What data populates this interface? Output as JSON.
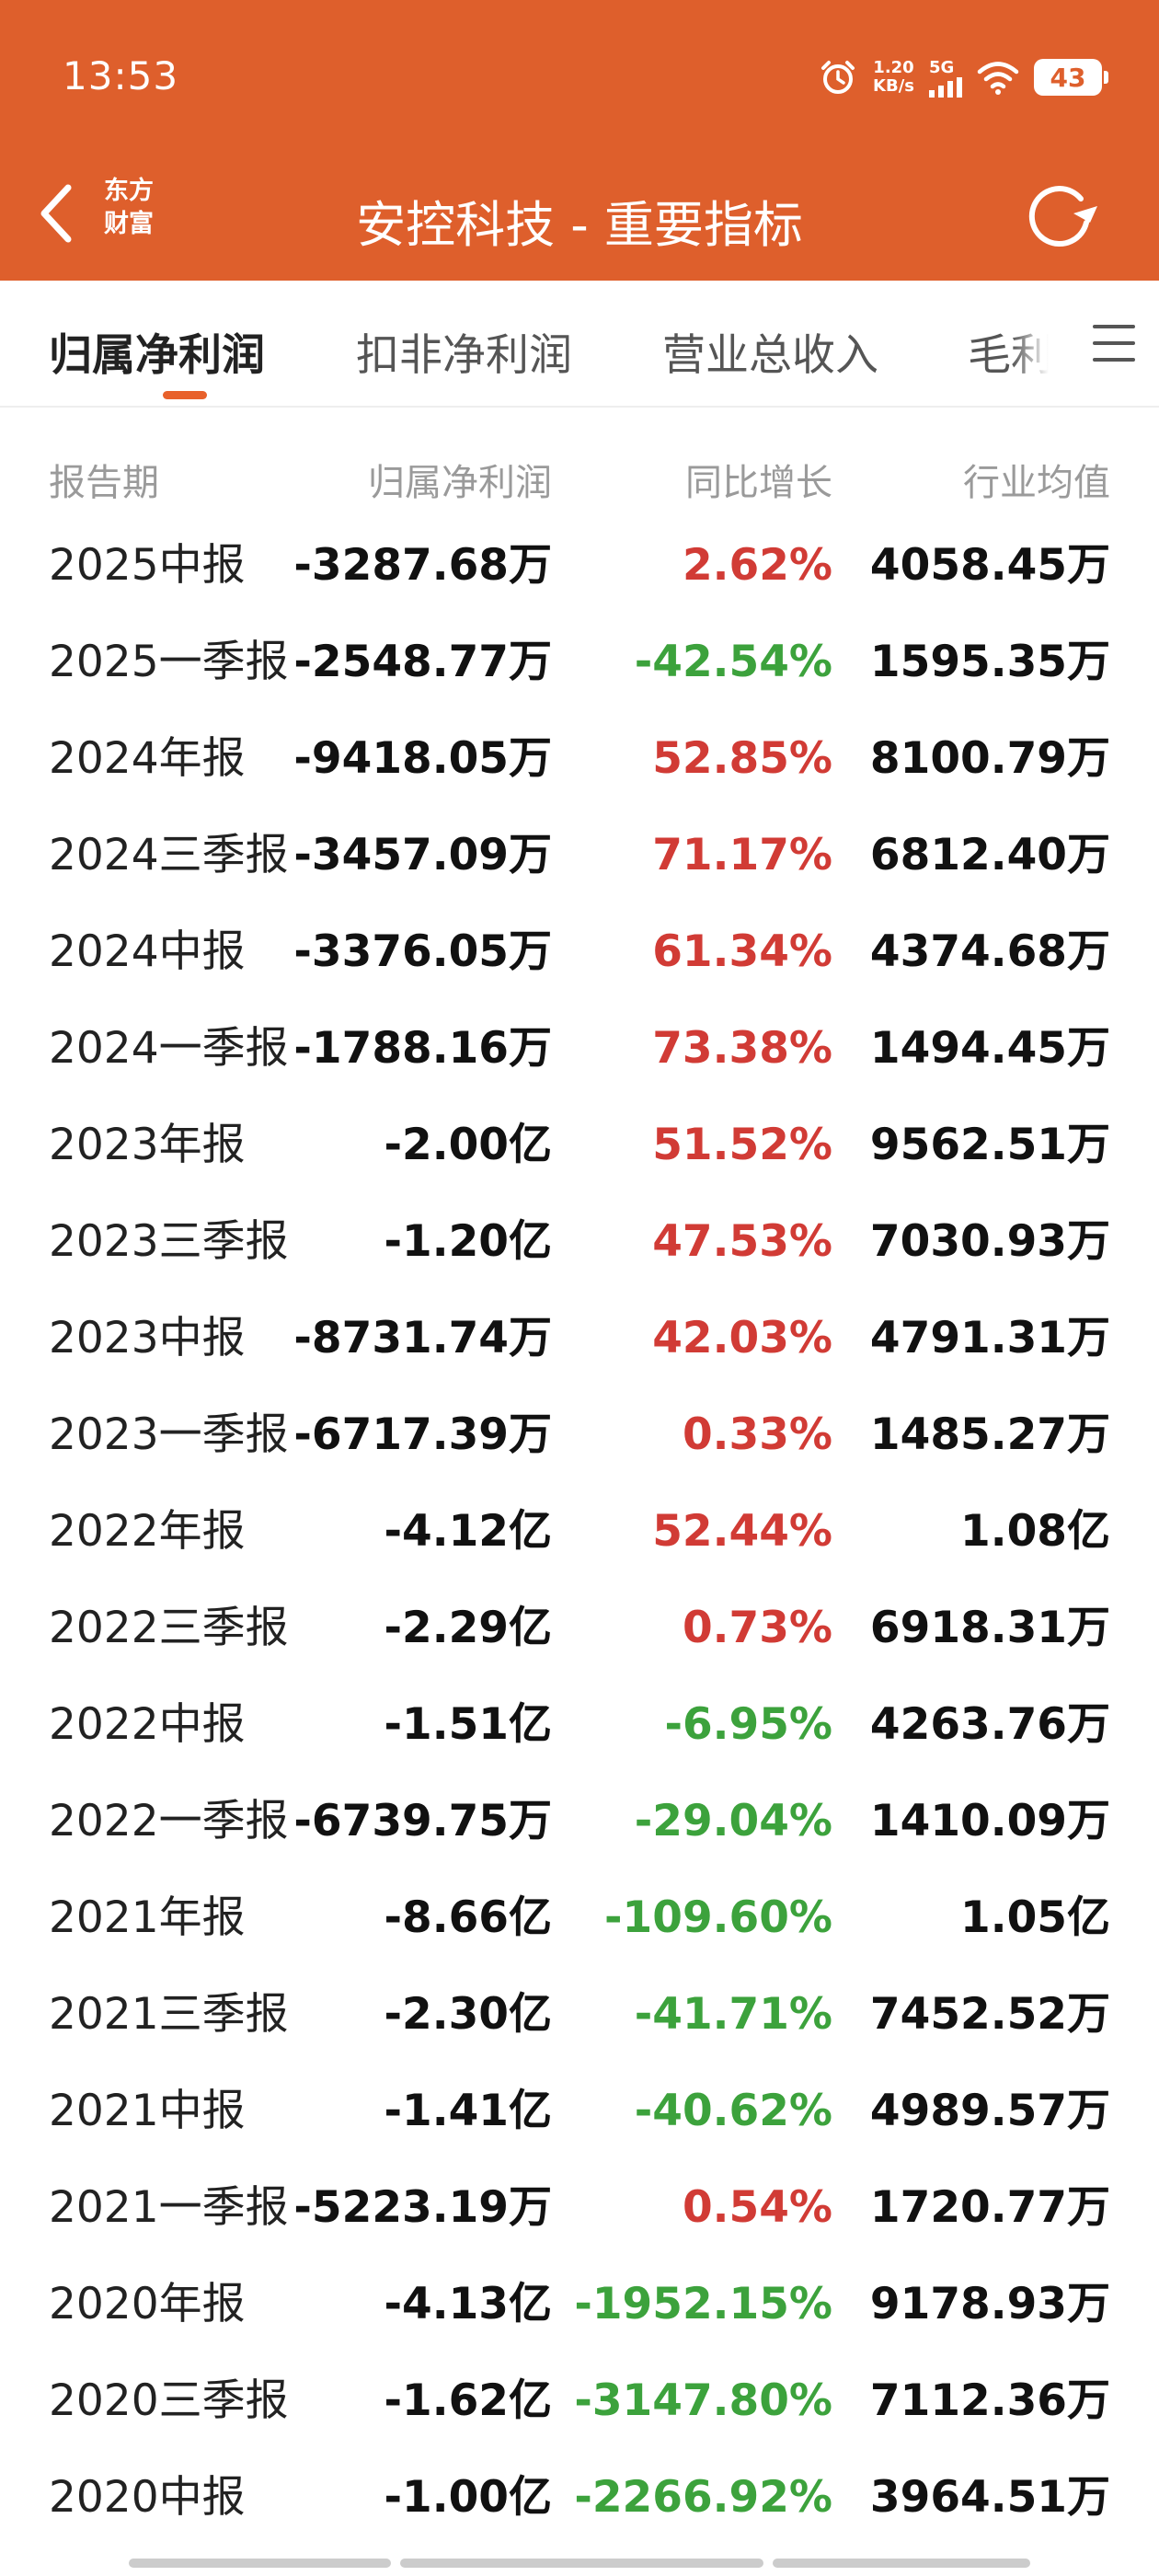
{
  "status_bar": {
    "time": "13:53",
    "net_speed_value": "1.20",
    "net_speed_unit": "KB/s",
    "signal_label": "5G",
    "battery": "43"
  },
  "header": {
    "logo_line1": "东方",
    "logo_line2": "财富",
    "title": "安控科技 - 重要指标",
    "accent_color": "#DE5F2C"
  },
  "tabs": [
    {
      "label": "归属净利润",
      "active": true
    },
    {
      "label": "扣非净利润",
      "active": false
    },
    {
      "label": "营业总收入",
      "active": false
    },
    {
      "label": "毛利",
      "active": false
    }
  ],
  "table": {
    "columns": [
      "报告期",
      "归属净利润",
      "同比增长",
      "行业均值"
    ],
    "rows": [
      {
        "period": "2025中报",
        "profit": "-3287.68万",
        "yoy": "2.62%",
        "trend": "up",
        "industry_avg": "4058.45万"
      },
      {
        "period": "2025一季报",
        "profit": "-2548.77万",
        "yoy": "-42.54%",
        "trend": "down",
        "industry_avg": "1595.35万"
      },
      {
        "period": "2024年报",
        "profit": "-9418.05万",
        "yoy": "52.85%",
        "trend": "up",
        "industry_avg": "8100.79万"
      },
      {
        "period": "2024三季报",
        "profit": "-3457.09万",
        "yoy": "71.17%",
        "trend": "up",
        "industry_avg": "6812.40万"
      },
      {
        "period": "2024中报",
        "profit": "-3376.05万",
        "yoy": "61.34%",
        "trend": "up",
        "industry_avg": "4374.68万"
      },
      {
        "period": "2024一季报",
        "profit": "-1788.16万",
        "yoy": "73.38%",
        "trend": "up",
        "industry_avg": "1494.45万"
      },
      {
        "period": "2023年报",
        "profit": "-2.00亿",
        "yoy": "51.52%",
        "trend": "up",
        "industry_avg": "9562.51万"
      },
      {
        "period": "2023三季报",
        "profit": "-1.20亿",
        "yoy": "47.53%",
        "trend": "up",
        "industry_avg": "7030.93万"
      },
      {
        "period": "2023中报",
        "profit": "-8731.74万",
        "yoy": "42.03%",
        "trend": "up",
        "industry_avg": "4791.31万"
      },
      {
        "period": "2023一季报",
        "profit": "-6717.39万",
        "yoy": "0.33%",
        "trend": "up",
        "industry_avg": "1485.27万"
      },
      {
        "period": "2022年报",
        "profit": "-4.12亿",
        "yoy": "52.44%",
        "trend": "up",
        "industry_avg": "1.08亿"
      },
      {
        "period": "2022三季报",
        "profit": "-2.29亿",
        "yoy": "0.73%",
        "trend": "up",
        "industry_avg": "6918.31万"
      },
      {
        "period": "2022中报",
        "profit": "-1.51亿",
        "yoy": "-6.95%",
        "trend": "down",
        "industry_avg": "4263.76万"
      },
      {
        "period": "2022一季报",
        "profit": "-6739.75万",
        "yoy": "-29.04%",
        "trend": "down",
        "industry_avg": "1410.09万"
      },
      {
        "period": "2021年报",
        "profit": "-8.66亿",
        "yoy": "-109.60%",
        "trend": "down",
        "industry_avg": "1.05亿"
      },
      {
        "period": "2021三季报",
        "profit": "-2.30亿",
        "yoy": "-41.71%",
        "trend": "down",
        "industry_avg": "7452.52万"
      },
      {
        "period": "2021中报",
        "profit": "-1.41亿",
        "yoy": "-40.62%",
        "trend": "down",
        "industry_avg": "4989.57万"
      },
      {
        "period": "2021一季报",
        "profit": "-5223.19万",
        "yoy": "0.54%",
        "trend": "up",
        "industry_avg": "1720.77万"
      },
      {
        "period": "2020年报",
        "profit": "-4.13亿",
        "yoy": "-1952.15%",
        "trend": "down",
        "industry_avg": "9178.93万"
      },
      {
        "period": "2020三季报",
        "profit": "-1.62亿",
        "yoy": "-3147.80%",
        "trend": "down",
        "industry_avg": "7112.36万"
      },
      {
        "period": "2020中报",
        "profit": "-1.00亿",
        "yoy": "-2266.92%",
        "trend": "down",
        "industry_avg": "3964.51万"
      }
    ]
  },
  "colors": {
    "up": "#D13B35",
    "down": "#3CA23C",
    "tab_indicator": "#E8612B"
  }
}
